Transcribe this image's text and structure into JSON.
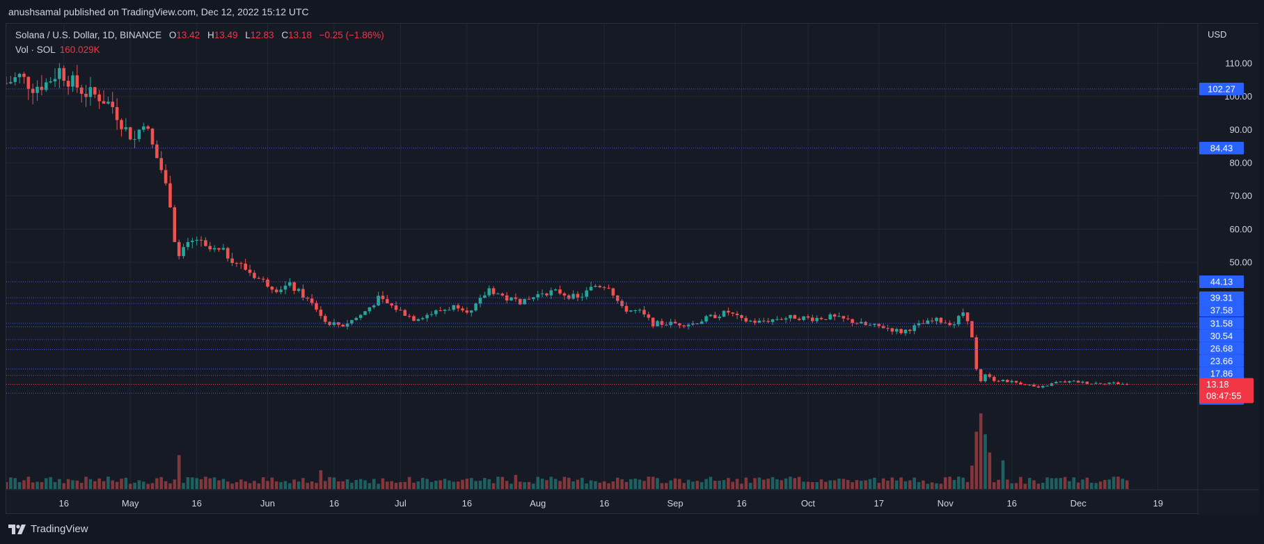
{
  "publish_info": "anushsamal published on TradingView.com, Dec 12, 2022 15:12 UTC",
  "legend": {
    "symbol": "Solana / U.S. Dollar, 1D, BINANCE",
    "o_label": "O",
    "o_value": "13.42",
    "h_label": "H",
    "h_value": "13.49",
    "l_label": "L",
    "l_value": "12.83",
    "c_label": "C",
    "c_value": "13.18",
    "change": "−0.25 (−1.86%)",
    "vol_label": "Vol · SOL",
    "vol_value": "160.029K"
  },
  "footer": {
    "brand": "TradingView"
  },
  "colors": {
    "background": "#161a25",
    "up": "#26a69a",
    "down": "#ef5350",
    "level_line": "#3d5afe",
    "price_tag_bg": "#2962ff",
    "current_price_bg": "#f23645",
    "text": "#d1d4dc",
    "grid": "#232733"
  },
  "chart_data": {
    "type": "candlestick",
    "currency": "USD",
    "current_price": "13.18",
    "countdown": "08:47:55",
    "y_ticks": [
      "110.00",
      "100.00",
      "90.00",
      "80.00",
      "70.00",
      "60.00",
      "50.00"
    ],
    "x_ticks": [
      "16",
      "May",
      "16",
      "Jun",
      "16",
      "Jul",
      "16",
      "Aug",
      "16",
      "Sep",
      "16",
      "Oct",
      "17",
      "Nov",
      "16",
      "Dec",
      "19"
    ],
    "x_tick_dates": [
      "2022-04-16",
      "2022-05-01",
      "2022-05-16",
      "2022-06-01",
      "2022-06-16",
      "2022-07-01",
      "2022-07-16",
      "2022-08-01",
      "2022-08-16",
      "2022-09-01",
      "2022-09-16",
      "2022-10-01",
      "2022-10-17",
      "2022-11-01",
      "2022-11-16",
      "2022-12-01",
      "2022-12-19"
    ],
    "x_range": [
      "2022-04-03",
      "2022-12-28"
    ],
    "horizontal_levels": [
      "102.27",
      "84.43",
      "44.13",
      "39.31",
      "37.58",
      "31.58",
      "30.54",
      "26.68",
      "23.66",
      "17.86",
      "15.90",
      "10.51"
    ],
    "series": [
      {
        "name": "SOL/USD",
        "anchors": [
          [
            "2022-04-03",
            104
          ],
          [
            "2022-04-06",
            106
          ],
          [
            "2022-04-09",
            103
          ],
          [
            "2022-04-12",
            104
          ],
          [
            "2022-04-15",
            108
          ],
          [
            "2022-04-18",
            104
          ],
          [
            "2022-04-21",
            101
          ],
          [
            "2022-04-24",
            100
          ],
          [
            "2022-04-27",
            97
          ],
          [
            "2022-04-30",
            90
          ],
          [
            "2022-05-02",
            87
          ],
          [
            "2022-05-04",
            93
          ],
          [
            "2022-05-06",
            85
          ],
          [
            "2022-05-08",
            78
          ],
          [
            "2022-05-10",
            68
          ],
          [
            "2022-05-11",
            57
          ],
          [
            "2022-05-12",
            52
          ],
          [
            "2022-05-14",
            55
          ],
          [
            "2022-05-16",
            57
          ],
          [
            "2022-05-18",
            54
          ],
          [
            "2022-05-22",
            53
          ],
          [
            "2022-05-26",
            49
          ],
          [
            "2022-05-30",
            45
          ],
          [
            "2022-06-03",
            42
          ],
          [
            "2022-06-06",
            43
          ],
          [
            "2022-06-09",
            40
          ],
          [
            "2022-06-12",
            36
          ],
          [
            "2022-06-14",
            32
          ],
          [
            "2022-06-18",
            31
          ],
          [
            "2022-06-22",
            34
          ],
          [
            "2022-06-26",
            39
          ],
          [
            "2022-06-30",
            36
          ],
          [
            "2022-07-04",
            33
          ],
          [
            "2022-07-09",
            35
          ],
          [
            "2022-07-14",
            37
          ],
          [
            "2022-07-17",
            35
          ],
          [
            "2022-07-21",
            42
          ],
          [
            "2022-07-25",
            39
          ],
          [
            "2022-07-29",
            38
          ],
          [
            "2022-08-02",
            41
          ],
          [
            "2022-08-06",
            41
          ],
          [
            "2022-08-10",
            39
          ],
          [
            "2022-08-14",
            43
          ],
          [
            "2022-08-17",
            43
          ],
          [
            "2022-08-20",
            36
          ],
          [
            "2022-08-24",
            35
          ],
          [
            "2022-08-27",
            31.5
          ],
          [
            "2022-09-01",
            31.5
          ],
          [
            "2022-09-05",
            31.5
          ],
          [
            "2022-09-09",
            33.5
          ],
          [
            "2022-09-13",
            35
          ],
          [
            "2022-09-16",
            32.5
          ],
          [
            "2022-09-20",
            32
          ],
          [
            "2022-09-24",
            33
          ],
          [
            "2022-09-28",
            33.5
          ],
          [
            "2022-10-02",
            33
          ],
          [
            "2022-10-06",
            33.5
          ],
          [
            "2022-10-10",
            32.5
          ],
          [
            "2022-10-14",
            31
          ],
          [
            "2022-10-18",
            30.5
          ],
          [
            "2022-10-22",
            29
          ],
          [
            "2022-10-26",
            31
          ],
          [
            "2022-10-30",
            32.5
          ],
          [
            "2022-11-03",
            31.5
          ],
          [
            "2022-11-05",
            35
          ],
          [
            "2022-11-06",
            33
          ],
          [
            "2022-11-07",
            27
          ],
          [
            "2022-11-08",
            18
          ],
          [
            "2022-11-09",
            14
          ],
          [
            "2022-11-10",
            16
          ],
          [
            "2022-11-12",
            14.5
          ],
          [
            "2022-11-16",
            14
          ],
          [
            "2022-11-20",
            13
          ],
          [
            "2022-11-22",
            12
          ],
          [
            "2022-11-26",
            13.8
          ],
          [
            "2022-11-30",
            14
          ],
          [
            "2022-12-04",
            13.5
          ],
          [
            "2022-12-08",
            13.7
          ],
          [
            "2022-12-12",
            13.18
          ]
        ],
        "volume_spikes": [
          [
            "2022-05-12",
            6.5
          ],
          [
            "2022-06-13",
            3.6
          ],
          [
            "2022-07-27",
            2.7
          ],
          [
            "2022-11-07",
            4.5
          ],
          [
            "2022-11-08",
            11
          ],
          [
            "2022-11-09",
            14.5
          ],
          [
            "2022-11-10",
            10.5
          ],
          [
            "2022-11-11",
            7
          ],
          [
            "2022-11-14",
            5.5
          ]
        ]
      }
    ]
  }
}
